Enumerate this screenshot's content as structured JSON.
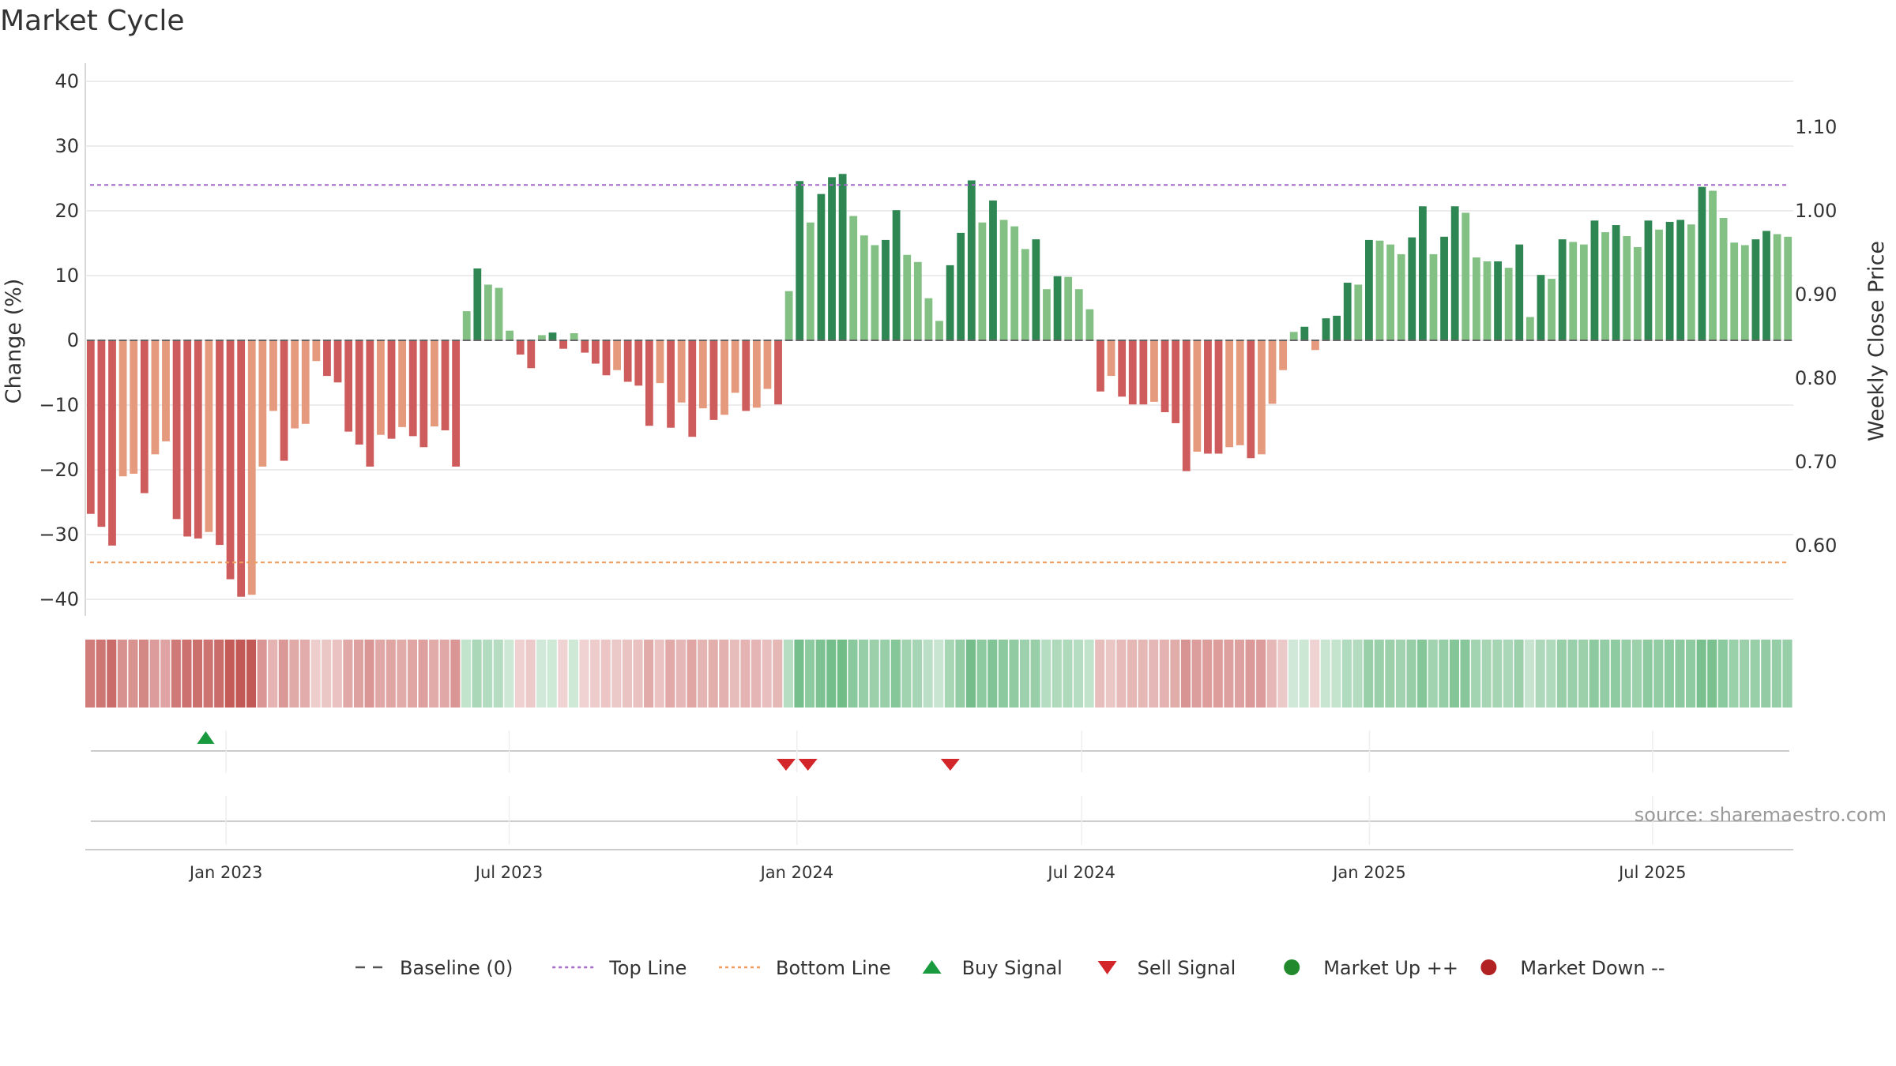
{
  "chart_data": {
    "type": "bar",
    "title": "Market Cycle",
    "ylabel": "Change (%)",
    "y2label": "Weekly Close Price",
    "ylim": [
      -42,
      42
    ],
    "yticks": [
      40,
      30,
      20,
      10,
      0,
      -10,
      -20,
      -30,
      -40
    ],
    "y2lim": [
      0.5,
      1.15
    ],
    "y2ticks": [
      "1.10",
      "1.00",
      "0.90",
      "0.80",
      "0.70",
      "0.60"
    ],
    "y2tick_values": [
      1.1,
      1.0,
      0.9,
      0.8,
      0.7,
      0.6
    ],
    "x_start": "2022-10-03",
    "x_end": "2025-09-29",
    "xticks": [
      {
        "date": "2023-01-01",
        "label": "Jan 2023"
      },
      {
        "date": "2023-07-01",
        "label": "Jul 2023"
      },
      {
        "date": "2024-01-01",
        "label": "Jan 2024"
      },
      {
        "date": "2024-07-01",
        "label": "Jul 2024"
      },
      {
        "date": "2025-01-01",
        "label": "Jan 2025"
      },
      {
        "date": "2025-07-01",
        "label": "Jul 2025"
      }
    ],
    "top_line": 24,
    "bottom_line": -34.3,
    "baseline": 0,
    "values": [
      -26.8,
      -28.8,
      -31.7,
      -21,
      -20.6,
      -23.6,
      -17.6,
      -15.6,
      -27.6,
      -30.3,
      -30.6,
      -29.6,
      -31.6,
      -36.9,
      -39.6,
      -39.3,
      -19.5,
      -10.9,
      -18.6,
      -13.6,
      -12.9,
      -3.2,
      -5.5,
      -6.5,
      -14.1,
      -16.1,
      -19.5,
      -14.6,
      -15.2,
      -13.4,
      -14.8,
      -16.5,
      -13.3,
      -13.9,
      -19.5,
      4.5,
      11.1,
      8.6,
      8.1,
      1.5,
      -2.2,
      -4.3,
      0.8,
      1.2,
      -1.3,
      1.1,
      -1.9,
      -3.6,
      -5.4,
      -4.6,
      -6.4,
      -7,
      -13.2,
      -6.6,
      -13.5,
      -9.6,
      -14.9,
      -10.5,
      -12.3,
      -11.5,
      -8.1,
      -10.9,
      -10.4,
      -7.5,
      -9.9,
      7.6,
      24.6,
      18.2,
      22.6,
      25.2,
      25.7,
      19.2,
      16.2,
      14.7,
      15.5,
      20.1,
      13.2,
      12.1,
      6.5,
      3,
      11.6,
      16.6,
      24.7,
      18.2,
      21.6,
      18.6,
      17.6,
      14.1,
      15.6,
      7.9,
      9.9,
      9.8,
      7.9,
      4.8,
      -7.9,
      -5.5,
      -8.7,
      -9.9,
      -9.9,
      -9.5,
      -11.1,
      -12.8,
      -20.2,
      -17.2,
      -17.5,
      -17.5,
      -16.5,
      -16.2,
      -18.2,
      -17.6,
      -9.8,
      -4.6,
      1.3,
      2.1,
      -1.5,
      3.4,
      3.8,
      8.9,
      8.6,
      15.5,
      15.4,
      14.8,
      13.3,
      15.9,
      20.7,
      13.3,
      16,
      20.7,
      19.7,
      12.8,
      12.2,
      12.2,
      11.2,
      14.8,
      3.6,
      10.1,
      9.5,
      15.6,
      15.2,
      14.8,
      18.5,
      16.7,
      17.8,
      16.1,
      14.4,
      18.5,
      17.1,
      18.3,
      18.6,
      17.9,
      23.7,
      23.1,
      18.9,
      15.1,
      14.7,
      15.6,
      16.9,
      16.4,
      16
    ],
    "buy_signals": [
      "2022-12-19"
    ],
    "sell_signals": [
      "2023-12-25",
      "2024-01-08",
      "2024-04-08"
    ],
    "source": "source: sharemaestro.com",
    "colors": {
      "down_strong": "#cf5c5c",
      "down_weak": "#e59a7e",
      "up_strong": "#2e8653",
      "up_weak": "#82c083",
      "top_line": "#a569c8",
      "bottom_line": "#ef9c5c",
      "baseline": "#555555",
      "buy": "#1a9a3e",
      "sell": "#d3262b",
      "market_up": "#228a2d",
      "market_down": "#b22222"
    },
    "legend": [
      {
        "label": "Baseline (0)",
        "kind": "dash",
        "color": "#555555"
      },
      {
        "label": "Top Line",
        "kind": "dot",
        "color": "#a569c8"
      },
      {
        "label": "Bottom Line",
        "kind": "dot",
        "color": "#ef9c5c"
      },
      {
        "label": "Buy Signal",
        "kind": "tri-up",
        "color": "#1a9a3e"
      },
      {
        "label": "Sell Signal",
        "kind": "tri-down",
        "color": "#d3262b"
      },
      {
        "label": "Market Up ++",
        "kind": "circle",
        "color": "#228a2d"
      },
      {
        "label": "Market Down --",
        "kind": "circle",
        "color": "#b22222"
      }
    ]
  }
}
